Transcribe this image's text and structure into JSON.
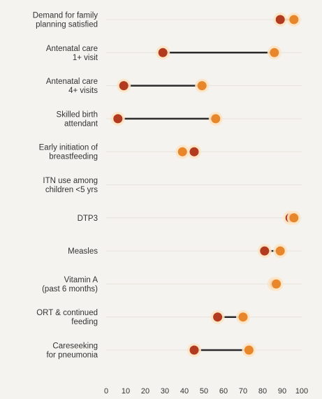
{
  "chart_data": {
    "type": "dumbbell",
    "title": "",
    "xlabel": "",
    "ylabel": "",
    "xlim": [
      0,
      100
    ],
    "xticks": [
      0,
      10,
      20,
      30,
      40,
      50,
      60,
      70,
      80,
      90,
      100
    ],
    "grid": false,
    "legend": "none",
    "colors": {
      "poorest": "#b23a1e",
      "richest": "#e8862b",
      "connector": "#2a2a2a",
      "halo": "#fde4c4",
      "guide": "#e6e2dc",
      "background": "#f5f3ef"
    },
    "categories": [
      [
        "Demand for family",
        "planning satisfied"
      ],
      [
        "Antenatal care",
        "1+ visit"
      ],
      [
        "Antenatal care",
        "4+ visits"
      ],
      [
        "Skilled birth",
        "attendant"
      ],
      [
        "Early initiation of",
        "breastfeeding"
      ],
      [
        "ITN use among",
        "children <5 yrs"
      ],
      [
        "DTP3"
      ],
      [
        "Measles"
      ],
      [
        "Vitamin A",
        "(past 6 months)"
      ],
      [
        "ORT & continued",
        "feeding"
      ],
      [
        "Careseeking",
        "for pneumonia"
      ]
    ],
    "series": [
      {
        "values": [
          89,
          29,
          9,
          6,
          45,
          null,
          94,
          81,
          86,
          57,
          45
        ]
      },
      {
        "values": [
          96,
          86,
          49,
          56,
          39,
          null,
          96,
          89,
          87,
          70,
          73
        ]
      }
    ]
  }
}
